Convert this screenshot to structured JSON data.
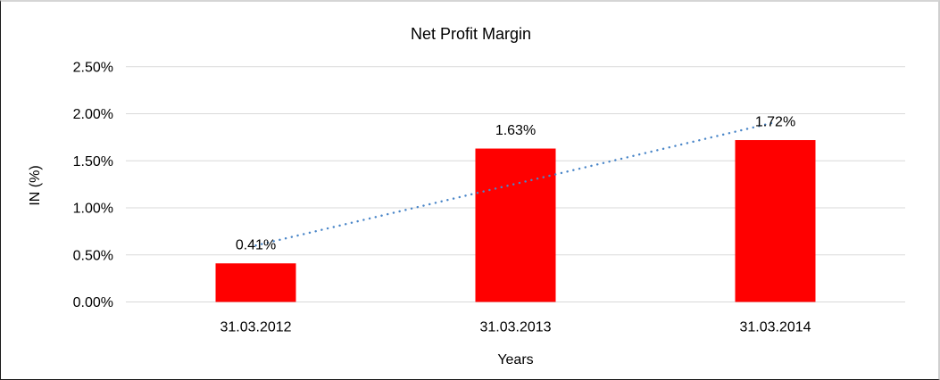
{
  "chart_data": {
    "type": "bar",
    "title": "Net Profit Margin",
    "xlabel": "Years",
    "ylabel": "IN (%)",
    "categories": [
      "31.03.2012",
      "31.03.2013",
      "31.03.2014"
    ],
    "values": [
      0.41,
      1.63,
      1.72
    ],
    "data_labels": [
      "0.41%",
      "1.63%",
      "1.72%"
    ],
    "y_ticks": [
      "0.00%",
      "0.50%",
      "1.00%",
      "1.50%",
      "2.00%",
      "2.50%"
    ],
    "y_tick_values": [
      0,
      0.5,
      1,
      1.5,
      2,
      2.5
    ],
    "ylim": [
      0,
      2.5
    ],
    "legend": "none",
    "grid": "horizontal",
    "colors": {
      "bar": "#FF0000",
      "trendline": "#4A86C8",
      "gridline": "#D9D9D9",
      "text": "#000000"
    },
    "trendline": {
      "type": "linear",
      "style": "dotted",
      "start_value": 0.6,
      "end_value": 1.91
    }
  }
}
